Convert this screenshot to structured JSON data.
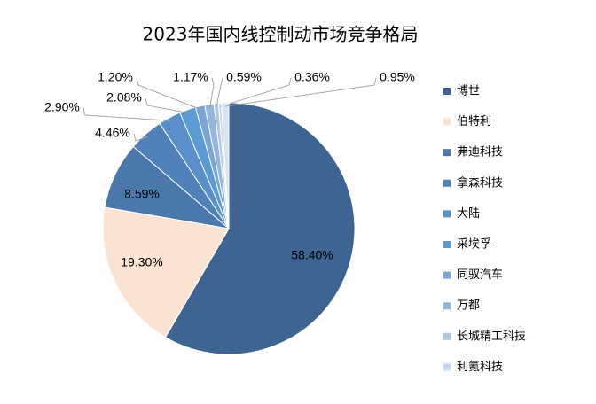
{
  "chart_data": {
    "type": "pie",
    "title": "2023年国内线控制动市场竞争格局",
    "categories": [
      "博世",
      "伯特利",
      "弗迪科技",
      "拿森科技",
      "大陆",
      "采埃孚",
      "同驭汽车",
      "万都",
      "长城精工科技",
      "利氪科技",
      null
    ],
    "values": [
      58.4,
      19.3,
      8.59,
      4.46,
      2.9,
      2.08,
      1.2,
      1.17,
      0.59,
      0.36,
      0.95
    ],
    "value_labels": [
      "58.40%",
      "19.30%",
      "8.59%",
      "4.46%",
      "2.90%",
      "2.08%",
      "1.20%",
      "1.17%",
      "0.59%",
      "0.36%",
      "0.95%"
    ],
    "colors": [
      "#3e6491",
      "#fbe3d3",
      "#4a78aa",
      "#4f82b8",
      "#5a8fcb",
      "#5b9bd5",
      "#7aa5d6",
      "#93b6de",
      "#b0c8e6",
      "#c5d6ee",
      "#d8e3f2"
    ],
    "legend": "right"
  }
}
